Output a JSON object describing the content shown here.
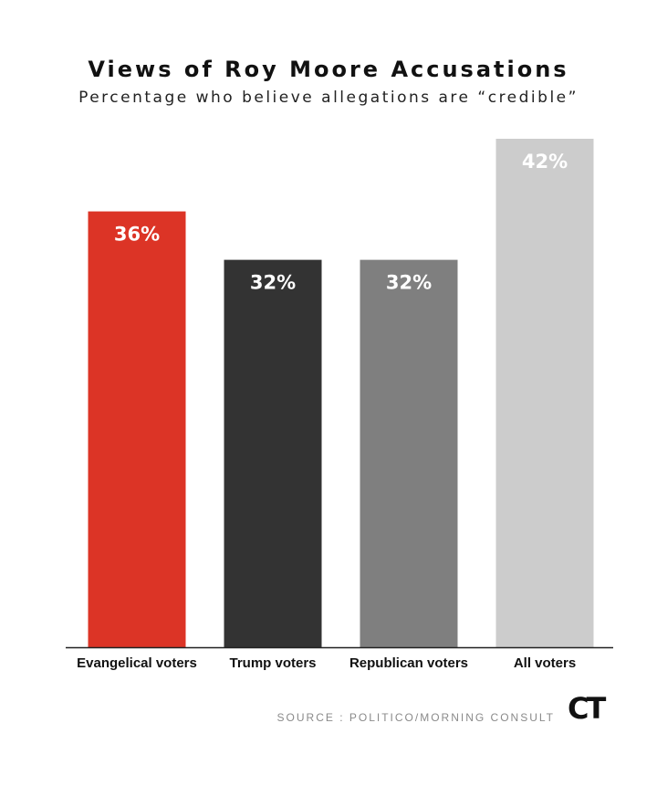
{
  "chart_data": {
    "type": "bar",
    "title": "Views of Roy Moore Accusations",
    "subtitle": "Percentage who believe allegations are “credible”",
    "categories": [
      "Evangelical voters",
      "Trump voters",
      "Republican voters",
      "All voters"
    ],
    "values": [
      36,
      32,
      32,
      42
    ],
    "value_labels": [
      "36%",
      "32%",
      "32%",
      "42%"
    ],
    "colors": [
      "#dc3426",
      "#333333",
      "#7f7f7f",
      "#cccccc"
    ],
    "ylim": [
      0,
      42
    ],
    "grid": false,
    "legend": "none"
  },
  "footer": {
    "source": "SOURCE : POLITICO/MORNING CONSULT",
    "logo": "CT"
  }
}
